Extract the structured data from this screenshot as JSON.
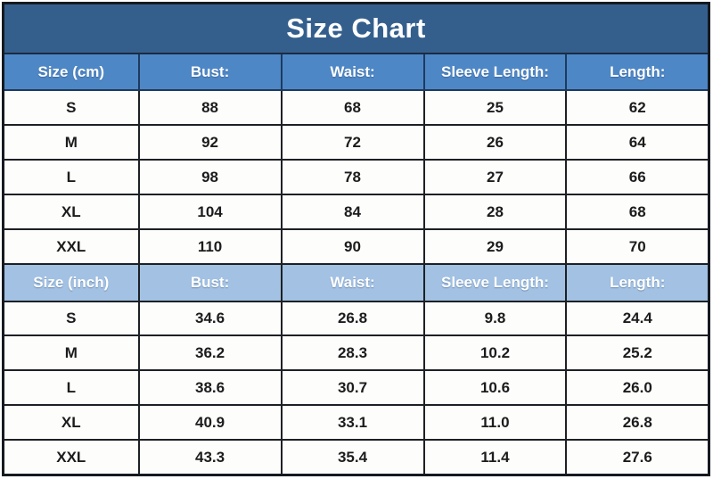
{
  "title": "Size Chart",
  "colors": {
    "title_bg": "#345f8d",
    "header_cm_bg": "#4e87c6",
    "header_inch_bg": "#a2c1e3",
    "header_text": "#ffffff",
    "cell_text": "#1c1c1c",
    "grid_border": "#1d2024",
    "row_bg": "#fdfdfc"
  },
  "chart_data": {
    "type": "table",
    "title": "Size Chart",
    "layout": {
      "columns": 5,
      "first_col_width_pct": 19.2,
      "other_col_width_pct": 20.2,
      "grid": "on"
    },
    "sections": [
      {
        "unit": "cm",
        "headers": [
          "Size (cm)",
          "Bust:",
          "Waist:",
          "Sleeve Length:",
          "Length:"
        ],
        "rows": [
          [
            "S",
            "88",
            "68",
            "25",
            "62"
          ],
          [
            "M",
            "92",
            "72",
            "26",
            "64"
          ],
          [
            "L",
            "98",
            "78",
            "27",
            "66"
          ],
          [
            "XL",
            "104",
            "84",
            "28",
            "68"
          ],
          [
            "XXL",
            "110",
            "90",
            "29",
            "70"
          ]
        ]
      },
      {
        "unit": "inch",
        "headers": [
          "Size (inch)",
          "Bust:",
          "Waist:",
          "Sleeve Length:",
          "Length:"
        ],
        "rows": [
          [
            "S",
            "34.6",
            "26.8",
            "9.8",
            "24.4"
          ],
          [
            "M",
            "36.2",
            "28.3",
            "10.2",
            "25.2"
          ],
          [
            "L",
            "38.6",
            "30.7",
            "10.6",
            "26.0"
          ],
          [
            "XL",
            "40.9",
            "33.1",
            "11.0",
            "26.8"
          ],
          [
            "XXL",
            "43.3",
            "35.4",
            "11.4",
            "27.6"
          ]
        ]
      }
    ]
  }
}
